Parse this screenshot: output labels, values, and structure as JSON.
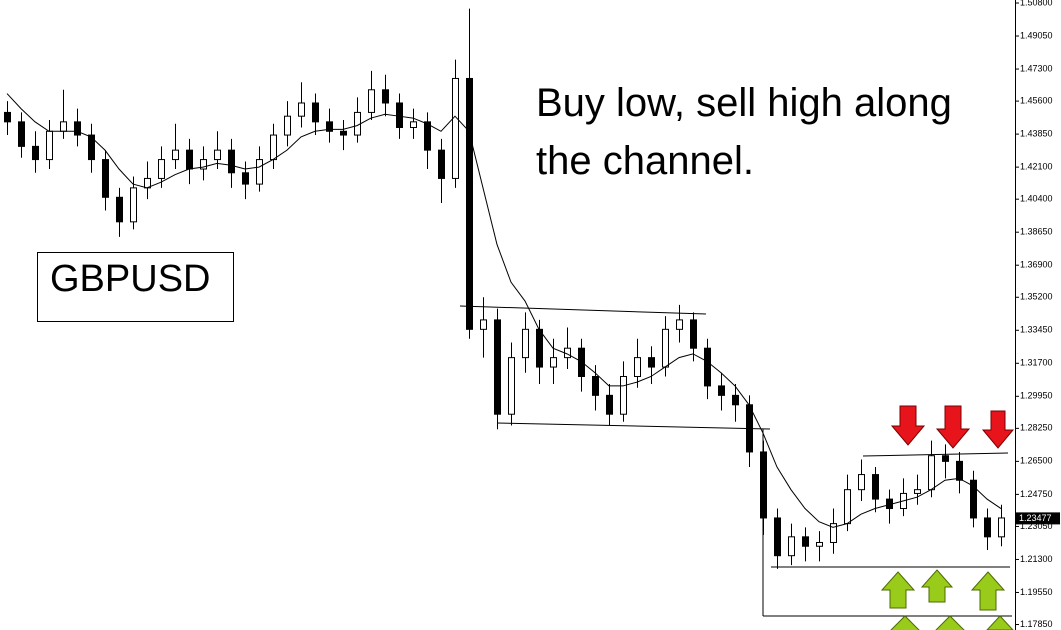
{
  "chart_data": {
    "type": "candlestick",
    "symbol": "GBPUSD",
    "annotation_lines": [
      "Buy low, sell high along",
      "the channel."
    ],
    "candles": [
      [
        1.45,
        1.456,
        1.438,
        1.445
      ],
      [
        1.445,
        1.45,
        1.426,
        1.432
      ],
      [
        1.432,
        1.44,
        1.418,
        1.425
      ],
      [
        1.425,
        1.446,
        1.42,
        1.44
      ],
      [
        1.44,
        1.462,
        1.436,
        1.445
      ],
      [
        1.445,
        1.452,
        1.432,
        1.438
      ],
      [
        1.438,
        1.444,
        1.418,
        1.425
      ],
      [
        1.425,
        1.43,
        1.398,
        1.405
      ],
      [
        1.405,
        1.41,
        1.384,
        1.392
      ],
      [
        1.392,
        1.416,
        1.388,
        1.41
      ],
      [
        1.41,
        1.424,
        1.404,
        1.415
      ],
      [
        1.415,
        1.432,
        1.41,
        1.425
      ],
      [
        1.425,
        1.444,
        1.42,
        1.43
      ],
      [
        1.43,
        1.436,
        1.412,
        1.42
      ],
      [
        1.42,
        1.432,
        1.414,
        1.425
      ],
      [
        1.425,
        1.44,
        1.42,
        1.43
      ],
      [
        1.43,
        1.436,
        1.41,
        1.418
      ],
      [
        1.418,
        1.424,
        1.404,
        1.412
      ],
      [
        1.412,
        1.432,
        1.408,
        1.425
      ],
      [
        1.425,
        1.444,
        1.42,
        1.438
      ],
      [
        1.438,
        1.456,
        1.432,
        1.448
      ],
      [
        1.448,
        1.466,
        1.442,
        1.455
      ],
      [
        1.455,
        1.46,
        1.438,
        1.445
      ],
      [
        1.445,
        1.452,
        1.434,
        1.44
      ],
      [
        1.44,
        1.446,
        1.43,
        1.438
      ],
      [
        1.438,
        1.458,
        1.434,
        1.45
      ],
      [
        1.45,
        1.472,
        1.446,
        1.462
      ],
      [
        1.462,
        1.47,
        1.448,
        1.455
      ],
      [
        1.455,
        1.46,
        1.436,
        1.442
      ],
      [
        1.442,
        1.452,
        1.436,
        1.445
      ],
      [
        1.445,
        1.45,
        1.42,
        1.43
      ],
      [
        1.43,
        1.436,
        1.402,
        1.415
      ],
      [
        1.415,
        1.478,
        1.41,
        1.468
      ],
      [
        1.468,
        1.505,
        1.33,
        1.335
      ],
      [
        1.335,
        1.352,
        1.32,
        1.34
      ],
      [
        1.34,
        1.346,
        1.282,
        1.29
      ],
      [
        1.29,
        1.328,
        1.284,
        1.32
      ],
      [
        1.32,
        1.344,
        1.312,
        1.335
      ],
      [
        1.335,
        1.34,
        1.306,
        1.315
      ],
      [
        1.315,
        1.33,
        1.306,
        1.32
      ],
      [
        1.32,
        1.336,
        1.314,
        1.325
      ],
      [
        1.325,
        1.33,
        1.302,
        1.31
      ],
      [
        1.31,
        1.316,
        1.292,
        1.3
      ],
      [
        1.3,
        1.306,
        1.284,
        1.29
      ],
      [
        1.29,
        1.318,
        1.286,
        1.31
      ],
      [
        1.31,
        1.33,
        1.304,
        1.32
      ],
      [
        1.32,
        1.326,
        1.306,
        1.315
      ],
      [
        1.315,
        1.342,
        1.31,
        1.335
      ],
      [
        1.335,
        1.348,
        1.328,
        1.34
      ],
      [
        1.34,
        1.344,
        1.318,
        1.325
      ],
      [
        1.325,
        1.33,
        1.298,
        1.305
      ],
      [
        1.305,
        1.312,
        1.292,
        1.3
      ],
      [
        1.3,
        1.306,
        1.286,
        1.295
      ],
      [
        1.295,
        1.3,
        1.262,
        1.27
      ],
      [
        1.27,
        1.276,
        1.226,
        1.235
      ],
      [
        1.235,
        1.24,
        1.208,
        1.215
      ],
      [
        1.215,
        1.232,
        1.21,
        1.225
      ],
      [
        1.225,
        1.23,
        1.212,
        1.22
      ],
      [
        1.22,
        1.228,
        1.212,
        1.222
      ],
      [
        1.222,
        1.24,
        1.216,
        1.232
      ],
      [
        1.232,
        1.258,
        1.228,
        1.25
      ],
      [
        1.25,
        1.266,
        1.244,
        1.258
      ],
      [
        1.258,
        1.262,
        1.238,
        1.245
      ],
      [
        1.245,
        1.25,
        1.232,
        1.24
      ],
      [
        1.24,
        1.256,
        1.236,
        1.248
      ],
      [
        1.248,
        1.258,
        1.242,
        1.25
      ],
      [
        1.25,
        1.276,
        1.246,
        1.268
      ],
      [
        1.268,
        1.274,
        1.256,
        1.265
      ],
      [
        1.265,
        1.27,
        1.248,
        1.255
      ],
      [
        1.255,
        1.26,
        1.23,
        1.235
      ],
      [
        1.235,
        1.24,
        1.218,
        1.225
      ],
      [
        1.225,
        1.242,
        1.22,
        1.235
      ]
    ],
    "moving_average": [
      1.46,
      1.452,
      1.445,
      1.44,
      1.44,
      1.44,
      1.437,
      1.43,
      1.42,
      1.412,
      1.41,
      1.413,
      1.417,
      1.42,
      1.421,
      1.423,
      1.422,
      1.42,
      1.421,
      1.425,
      1.43,
      1.437,
      1.44,
      1.441,
      1.441,
      1.443,
      1.447,
      1.449,
      1.448,
      1.447,
      1.444,
      1.44,
      1.448,
      1.44,
      1.41,
      1.38,
      1.36,
      1.35,
      1.335,
      1.325,
      1.322,
      1.318,
      1.312,
      1.305,
      1.305,
      1.307,
      1.31,
      1.315,
      1.32,
      1.322,
      1.318,
      1.312,
      1.305,
      1.295,
      1.28,
      1.262,
      1.25,
      1.24,
      1.233,
      1.23,
      1.232,
      1.237,
      1.24,
      1.242,
      1.244,
      1.246,
      1.25,
      1.255,
      1.256,
      1.252,
      1.245,
      1.24
    ],
    "last_price": 1.23477,
    "ylim": [
      1.1756,
      1.5096
    ],
    "yticks": [
      {
        "value": 1.508,
        "label": "1.50800"
      },
      {
        "value": 1.4905,
        "label": "1.49050"
      },
      {
        "value": 1.473,
        "label": "1.47300"
      },
      {
        "value": 1.456,
        "label": "1.45600"
      },
      {
        "value": 1.4385,
        "label": "1.43850"
      },
      {
        "value": 1.421,
        "label": "1.42100"
      },
      {
        "value": 1.404,
        "label": "1.40400"
      },
      {
        "value": 1.3865,
        "label": "1.38650"
      },
      {
        "value": 1.369,
        "label": "1.36900"
      },
      {
        "value": 1.352,
        "label": "1.35200"
      },
      {
        "value": 1.3345,
        "label": "1.33450"
      },
      {
        "value": 1.317,
        "label": "1.31700"
      },
      {
        "value": 1.2995,
        "label": "1.29950"
      },
      {
        "value": 1.2825,
        "label": "1.28250"
      },
      {
        "value": 1.265,
        "label": "1.26500"
      },
      {
        "value": 1.2475,
        "label": "1.24750"
      },
      {
        "value": 1.2305,
        "label": "1.23050"
      },
      {
        "value": 1.213,
        "label": "1.21300"
      },
      {
        "value": 1.1955,
        "label": "1.19550"
      },
      {
        "value": 1.1785,
        "label": "1.17850"
      }
    ],
    "up_color": "#ffffff",
    "down_color": "#000000",
    "line_color": "#000000"
  }
}
